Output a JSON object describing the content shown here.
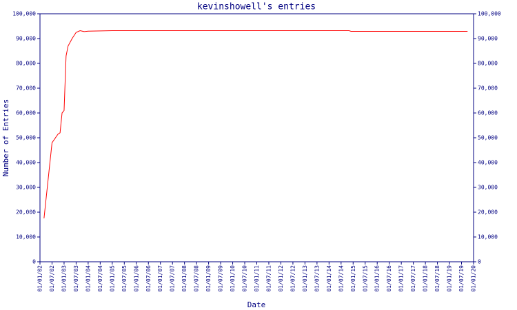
{
  "chart_data": {
    "type": "line",
    "title": "kevinshowell's entries",
    "x_label": "Date",
    "y_label": "Number of Entries",
    "x": [
      "2002-03-01",
      "2002-07-01",
      "2002-10-01",
      "2002-11-01",
      "2002-12-01",
      "2003-01-01",
      "2003-02-01",
      "2003-03-01",
      "2003-05-01",
      "2003-07-01",
      "2003-09-01",
      "2003-11-01",
      "2004-01-01",
      "2005-01-01",
      "2014-11-01",
      "2014-12-01",
      "2019-10-01"
    ],
    "series": [
      {
        "name": "entries",
        "color": "#ff0000",
        "values": [
          17500,
          48000,
          51500,
          52000,
          60000,
          61000,
          83000,
          87000,
          90000,
          92500,
          93200,
          92800,
          93000,
          93200,
          93200,
          92900,
          92900
        ]
      }
    ],
    "xlim": [
      "2002-01-01",
      "2020-01-01"
    ],
    "xticks": [
      {
        "value": "2002-01-01",
        "label": "01/01/02"
      },
      {
        "value": "2002-07-01",
        "label": "01/07/02"
      },
      {
        "value": "2003-01-01",
        "label": "01/01/03"
      },
      {
        "value": "2003-07-01",
        "label": "01/07/03"
      },
      {
        "value": "2004-01-01",
        "label": "01/01/04"
      },
      {
        "value": "2004-07-01",
        "label": "01/07/04"
      },
      {
        "value": "2005-01-01",
        "label": "01/01/05"
      },
      {
        "value": "2005-07-01",
        "label": "01/07/05"
      },
      {
        "value": "2006-01-01",
        "label": "01/01/06"
      },
      {
        "value": "2006-07-01",
        "label": "01/07/06"
      },
      {
        "value": "2007-01-01",
        "label": "01/01/07"
      },
      {
        "value": "2007-07-01",
        "label": "01/07/07"
      },
      {
        "value": "2008-01-01",
        "label": "01/01/08"
      },
      {
        "value": "2008-07-01",
        "label": "01/07/08"
      },
      {
        "value": "2009-01-01",
        "label": "01/01/09"
      },
      {
        "value": "2009-07-01",
        "label": "01/07/09"
      },
      {
        "value": "2010-01-01",
        "label": "01/01/10"
      },
      {
        "value": "2010-07-01",
        "label": "01/07/10"
      },
      {
        "value": "2011-01-01",
        "label": "01/01/11"
      },
      {
        "value": "2011-07-01",
        "label": "01/07/11"
      },
      {
        "value": "2012-01-01",
        "label": "01/01/12"
      },
      {
        "value": "2012-07-01",
        "label": "01/07/12"
      },
      {
        "value": "2013-01-01",
        "label": "01/01/13"
      },
      {
        "value": "2013-07-01",
        "label": "01/07/13"
      },
      {
        "value": "2014-01-01",
        "label": "01/01/14"
      },
      {
        "value": "2014-07-01",
        "label": "01/07/14"
      },
      {
        "value": "2015-01-01",
        "label": "01/01/15"
      },
      {
        "value": "2015-07-01",
        "label": "01/07/15"
      },
      {
        "value": "2016-01-01",
        "label": "01/01/16"
      },
      {
        "value": "2016-07-01",
        "label": "01/07/16"
      },
      {
        "value": "2017-01-01",
        "label": "01/01/17"
      },
      {
        "value": "2017-07-01",
        "label": "01/07/17"
      },
      {
        "value": "2018-01-01",
        "label": "01/01/18"
      },
      {
        "value": "2018-07-01",
        "label": "01/07/18"
      },
      {
        "value": "2019-01-01",
        "label": "01/01/19"
      },
      {
        "value": "2019-07-01",
        "label": "01/07/19"
      },
      {
        "value": "2020-01-01",
        "label": "01/01/20"
      }
    ],
    "ylim": [
      0,
      100000
    ],
    "yticks": [
      0,
      {
        "value": 10000,
        "label": "10,000"
      },
      {
        "value": 20000,
        "label": "20,000"
      },
      {
        "value": 30000,
        "label": "30,000"
      },
      {
        "value": 40000,
        "label": "40,000"
      },
      {
        "value": 50000,
        "label": "50,000"
      },
      {
        "value": 60000,
        "label": "60,000"
      },
      {
        "value": 70000,
        "label": "70,000"
      },
      {
        "value": 80000,
        "label": "80,000"
      },
      {
        "value": 90000,
        "label": "90,000"
      },
      {
        "value": 100000,
        "label": "100,000"
      }
    ],
    "y2lim": [
      0,
      100000
    ],
    "y2ticks": [
      0,
      {
        "value": 10000,
        "label": "10,000"
      },
      {
        "value": 20000,
        "label": "20,000"
      },
      {
        "value": 30000,
        "label": "30,000"
      },
      {
        "value": 40000,
        "label": "40,000"
      },
      {
        "value": 50000,
        "label": "50,000"
      },
      {
        "value": 60000,
        "label": "60,000"
      },
      {
        "value": 70000,
        "label": "70,000"
      },
      {
        "value": 80000,
        "label": "80,000"
      },
      {
        "value": 90000,
        "label": "90,000"
      },
      {
        "value": 100000,
        "label": "100,000"
      }
    ],
    "grid": false
  }
}
